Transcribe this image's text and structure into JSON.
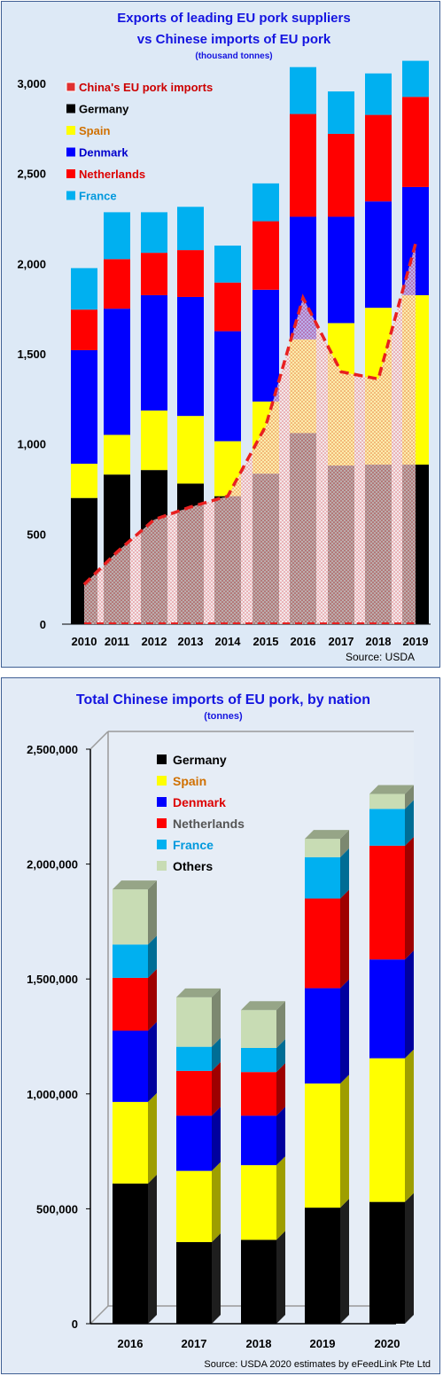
{
  "chart_data": [
    {
      "type": "bar",
      "subtype": "stacked-bar-with-area",
      "title": "Exports of leading EU pork suppliers",
      "title_line2": "vs Chinese imports of EU pork",
      "subtitle": "(thousand tonnes)",
      "source": "Source: USDA",
      "categories": [
        "2010",
        "2011",
        "2012",
        "2013",
        "2014",
        "2015",
        "2016",
        "2017",
        "2018",
        "2019"
      ],
      "ylim": [
        0,
        3000
      ],
      "yticks": [
        "0",
        "500",
        "1,000",
        "1,500",
        "2,000",
        "2,500",
        "3,000"
      ],
      "grid": false,
      "legend_position": "top-left",
      "series": [
        {
          "name": "Germany",
          "color": "#000000",
          "values": [
            700,
            830,
            855,
            780,
            710,
            835,
            1060,
            880,
            885,
            885
          ]
        },
        {
          "name": "Spain",
          "color": "#ffff00",
          "values": [
            190,
            220,
            330,
            375,
            305,
            400,
            520,
            790,
            870,
            940
          ]
        },
        {
          "name": "Denmark",
          "color": "#0000ff",
          "values": [
            630,
            700,
            640,
            660,
            610,
            620,
            680,
            590,
            590,
            600
          ]
        },
        {
          "name": "Netherlands",
          "color": "#ff0000",
          "values": [
            225,
            275,
            235,
            260,
            270,
            380,
            570,
            460,
            480,
            500
          ]
        },
        {
          "name": "France",
          "color": "#00b0f0",
          "values": [
            230,
            260,
            225,
            240,
            205,
            210,
            260,
            235,
            230,
            200
          ]
        }
      ],
      "overlay": {
        "name": "China's EU pork imports",
        "type": "area",
        "color": "#e03030",
        "values": [
          220,
          400,
          580,
          650,
          710,
          1100,
          1810,
          1400,
          1360,
          2110
        ]
      },
      "legend_text_colors": {
        "China's EU pork imports": "#cc0000",
        "Germany": "#000000",
        "Spain": "#d07000",
        "Denmark": "#0000cc",
        "Netherlands": "#dd0000",
        "France": "#0099dd"
      }
    },
    {
      "type": "bar",
      "subtype": "stacked-bar-3d",
      "title": "Total Chinese imports of EU pork, by nation",
      "subtitle": "(tonnes)",
      "source": "Source: USDA 2020 estimates by eFeedLink Pte Ltd",
      "categories": [
        "2016",
        "2017",
        "2018",
        "2019",
        "2020"
      ],
      "ylim": [
        0,
        2500000
      ],
      "yticks": [
        "0",
        "500,000",
        "1,000,000",
        "1,500,000",
        "2,000,000",
        "2,500,000"
      ],
      "grid": false,
      "legend_position": "top-left",
      "series": [
        {
          "name": "Germany",
          "color": "#000000",
          "values": [
            610000,
            355000,
            365000,
            505000,
            530000
          ]
        },
        {
          "name": "Spain",
          "color": "#ffff00",
          "values": [
            355000,
            310000,
            325000,
            540000,
            625000
          ]
        },
        {
          "name": "Denmark",
          "color": "#0000ff",
          "values": [
            310000,
            240000,
            215000,
            415000,
            430000
          ]
        },
        {
          "name": "Netherlands",
          "color": "#ff0000",
          "values": [
            230000,
            195000,
            190000,
            390000,
            495000
          ]
        },
        {
          "name": "France",
          "color": "#00b0f0",
          "values": [
            145000,
            105000,
            105000,
            180000,
            160000
          ]
        },
        {
          "name": "Others",
          "color": "#c8dcb4",
          "values": [
            240000,
            215000,
            165000,
            80000,
            65000
          ]
        }
      ],
      "legend_text_colors": {
        "Germany": "#000000",
        "Spain": "#d07000",
        "Denmark": "#dd0000",
        "Netherlands": "#555555",
        "France": "#0099dd",
        "Others": "#000000"
      }
    }
  ]
}
